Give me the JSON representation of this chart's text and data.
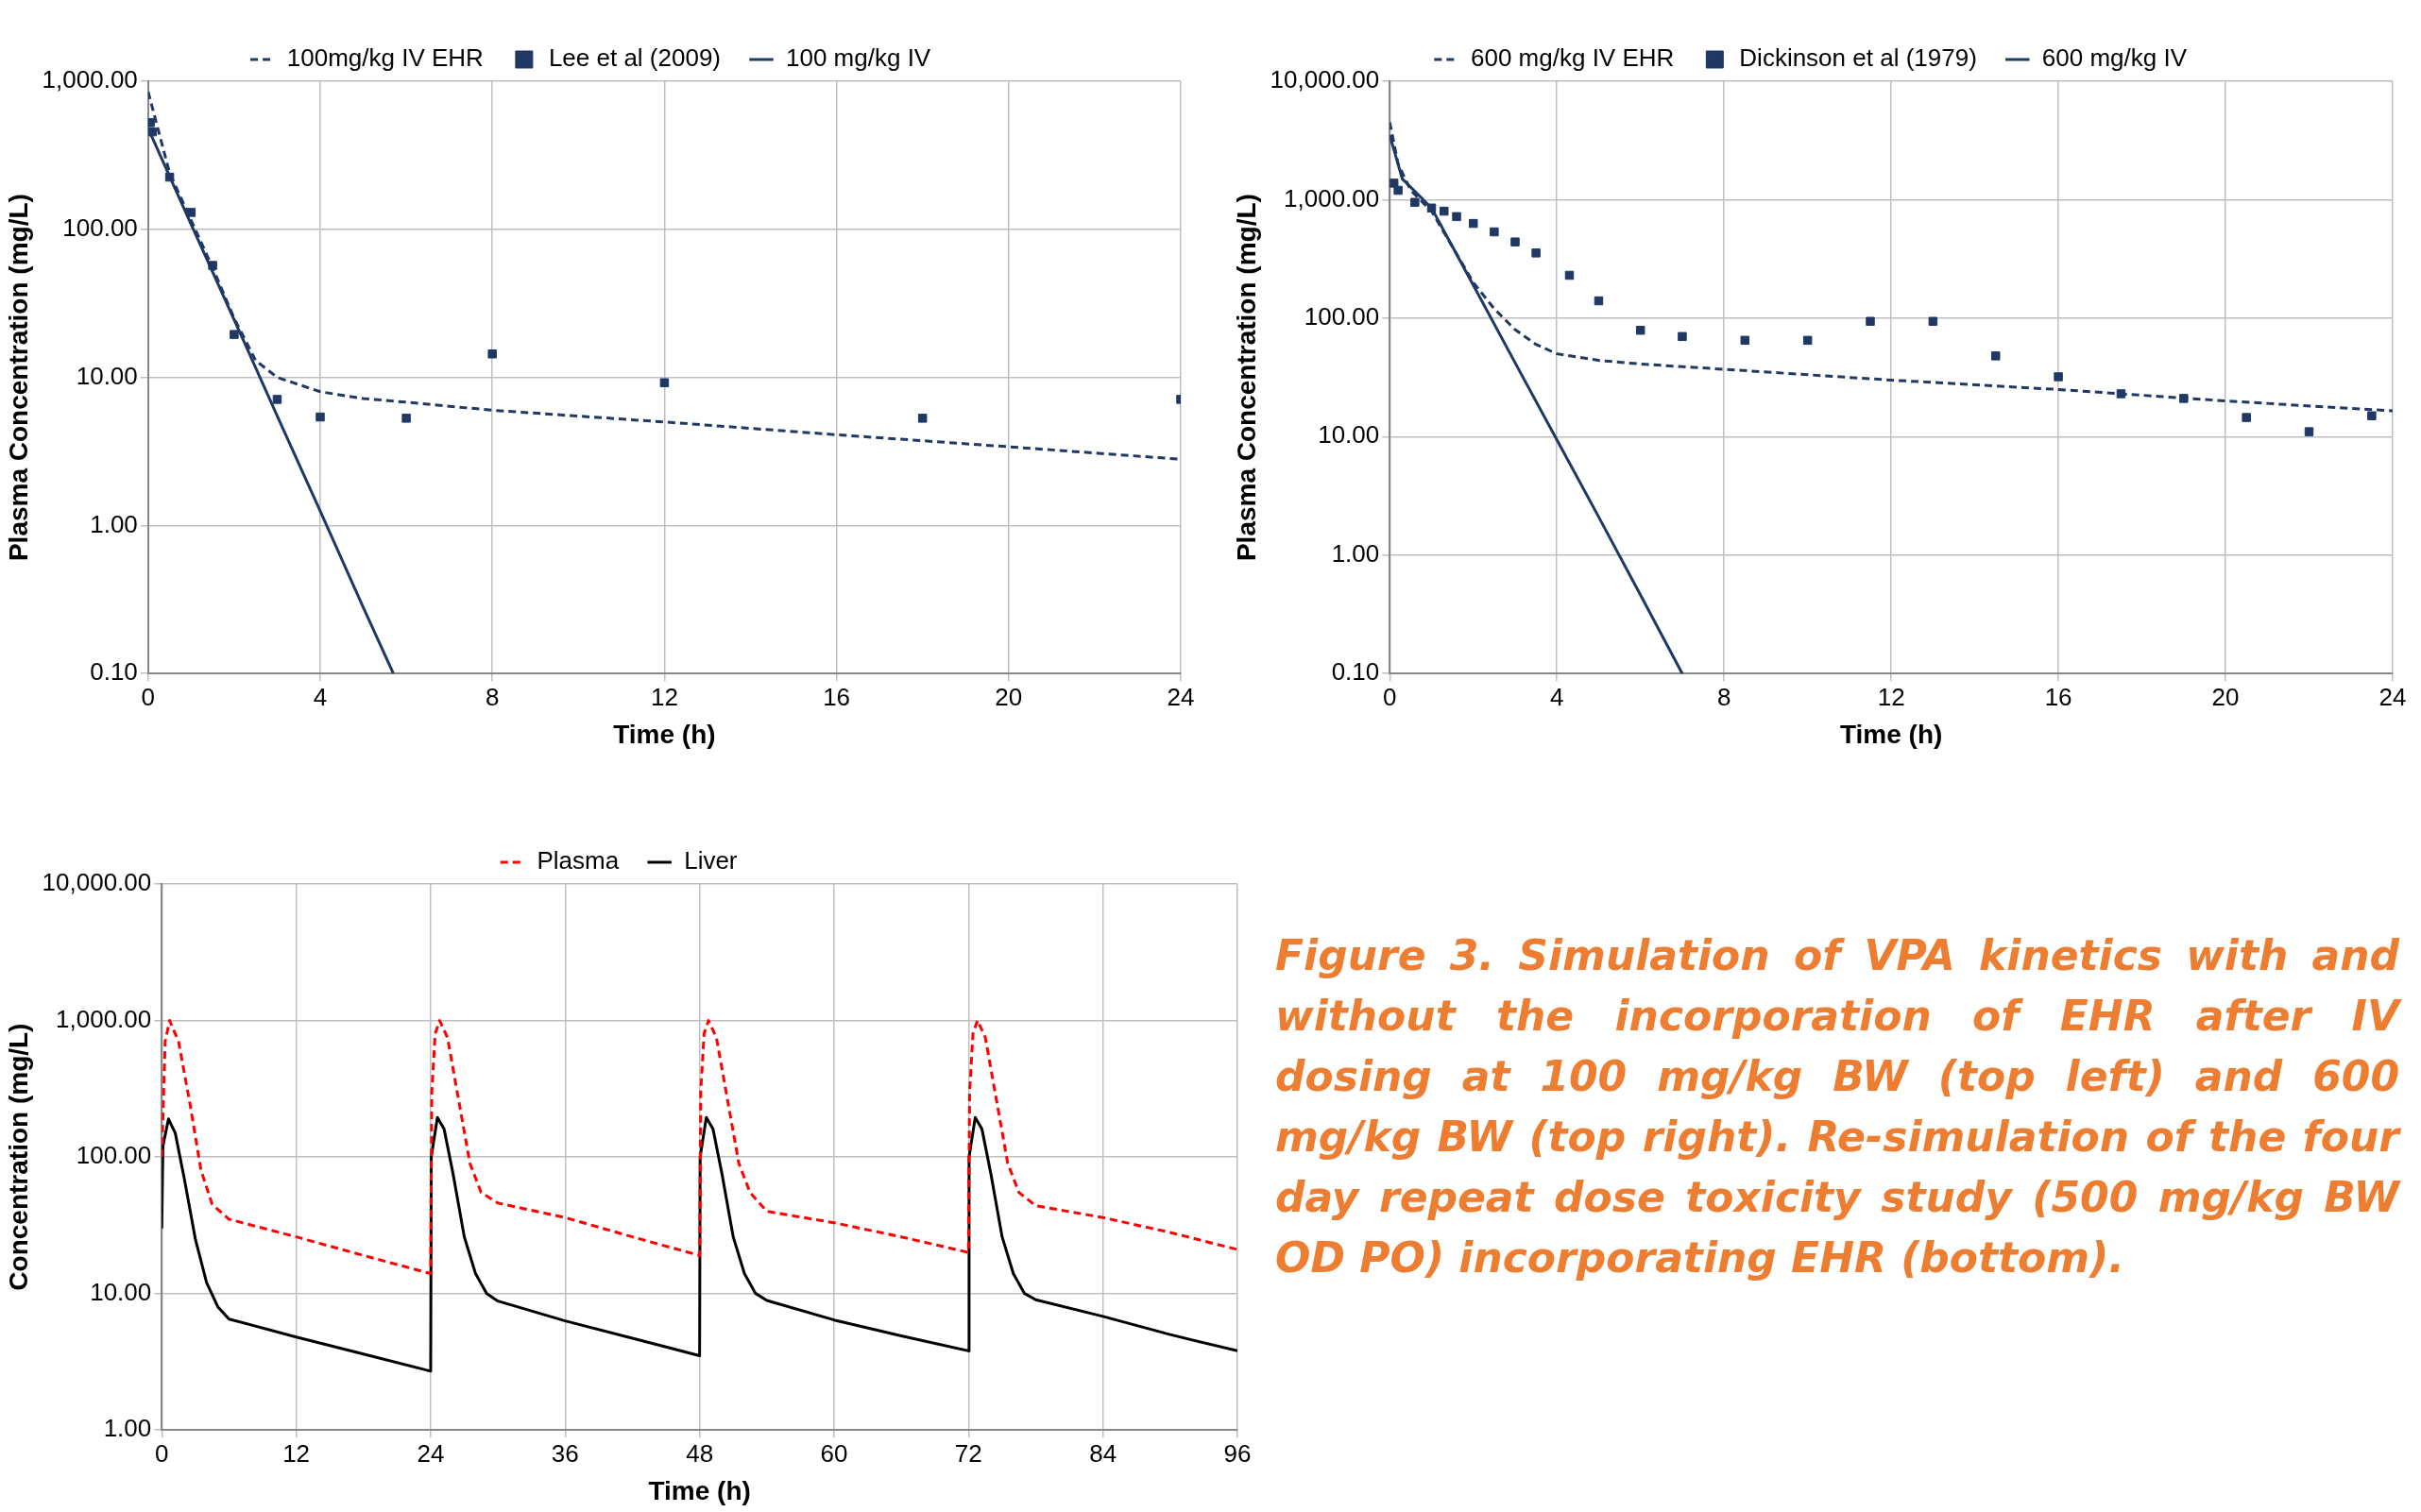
{
  "chart_data": [
    {
      "type": "line",
      "xlabel": "Time (h)",
      "ylabel": "Plasma Concentration (mg/L)",
      "log": "y",
      "grid": true,
      "legend": "top",
      "xlim": [
        0,
        24
      ],
      "xticks": [
        0,
        4,
        8,
        12,
        16,
        20,
        24
      ],
      "ylim": [
        0.1,
        1000
      ],
      "yticks": [
        {
          "value": 0.1,
          "label": "0.10"
        },
        {
          "value": 1,
          "label": "1.00"
        },
        {
          "value": 10,
          "label": "10.00"
        },
        {
          "value": 100,
          "label": "100.00"
        },
        {
          "value": 1000,
          "label": "1,000.00"
        }
      ],
      "series": [
        {
          "name": "100mg/kg IV EHR",
          "type": "line",
          "line_style": "dashed",
          "marker": "none",
          "color": "#1f3864",
          "x": [
            0,
            0.5,
            1,
            1.5,
            2,
            2.5,
            3,
            4,
            5,
            6,
            8,
            12,
            16,
            20,
            24
          ],
          "values": [
            850,
            240,
            115,
            55,
            25,
            13,
            10,
            8,
            7.2,
            6.8,
            6,
            5,
            4.1,
            3.4,
            2.8
          ]
        },
        {
          "name": "Lee et al (2009)",
          "type": "scatter",
          "marker": "square",
          "color": "#1f3864",
          "x": [
            0.05,
            0.1,
            0.5,
            1,
            1.5,
            2,
            3,
            4,
            6,
            8,
            12,
            18,
            24
          ],
          "values": [
            525,
            455,
            225,
            130,
            57,
            19.5,
            7.1,
            5.4,
            5.3,
            14.4,
            9.2,
            5.3,
            7.1
          ]
        },
        {
          "name": "100 mg/kg IV",
          "type": "line",
          "line_style": "solid",
          "marker": "none",
          "color": "#1f3864",
          "x": [
            0,
            1,
            2,
            3,
            4,
            5,
            5.7
          ],
          "values": [
            480,
            108,
            24.5,
            5.5,
            1.25,
            0.28,
            0.1
          ]
        }
      ]
    },
    {
      "type": "line",
      "xlabel": "Time (h)",
      "ylabel": "Plasma Concentration (mg/L)",
      "log": "y",
      "grid": true,
      "legend": "top",
      "xlim": [
        0,
        24
      ],
      "xticks": [
        0,
        4,
        8,
        12,
        16,
        20,
        24
      ],
      "ylim": [
        0.1,
        10000
      ],
      "yticks": [
        {
          "value": 0.1,
          "label": "0.10"
        },
        {
          "value": 1,
          "label": "1.00"
        },
        {
          "value": 10,
          "label": "10.00"
        },
        {
          "value": 100,
          "label": "100.00"
        },
        {
          "value": 1000,
          "label": "1,000.00"
        },
        {
          "value": 10000,
          "label": "10,000.00"
        }
      ],
      "series": [
        {
          "name": "600 mg/kg IV EHR",
          "type": "line",
          "line_style": "dashed",
          "marker": "none",
          "color": "#1f3864",
          "x": [
            0,
            0.2,
            0.5,
            1,
            1.5,
            2,
            2.5,
            3,
            3.5,
            4,
            5,
            6,
            8,
            12,
            16,
            20,
            24
          ],
          "values": [
            4500,
            2000,
            1200,
            800,
            400,
            200,
            120,
            80,
            60,
            50,
            44,
            41,
            37,
            30,
            25,
            20,
            16.5
          ]
        },
        {
          "name": "Dickinson et al (1979)",
          "type": "scatter",
          "marker": "square",
          "color": "#1f3864",
          "x": [
            0.1,
            0.2,
            0.6,
            1,
            1.3,
            1.6,
            2,
            2.5,
            3,
            3.5,
            4.3,
            5,
            6,
            7,
            8.5,
            10,
            11.5,
            13,
            14.5,
            16,
            17.5,
            19,
            20.5,
            22,
            23.5
          ],
          "values": [
            1380,
            1200,
            950,
            850,
            800,
            720,
            630,
            535,
            440,
            355,
            230,
            140,
            79,
            70,
            65,
            65,
            94,
            94,
            48,
            32,
            23,
            21,
            14.5,
            11,
            15
          ]
        },
        {
          "name": "600 mg/kg IV",
          "type": "line",
          "line_style": "solid",
          "marker": "none",
          "color": "#1f3864",
          "x": [
            0,
            0.3,
            1,
            2,
            3,
            4,
            5,
            6,
            7
          ],
          "values": [
            3500,
            1500,
            850,
            190,
            42,
            9.4,
            2.1,
            0.46,
            0.1
          ]
        }
      ]
    },
    {
      "type": "line",
      "xlabel": "Time (h)",
      "ylabel": "Concentration (mg/L)",
      "log": "y",
      "grid": true,
      "legend": "top",
      "xlim": [
        0,
        96
      ],
      "xticks": [
        0,
        12,
        24,
        36,
        48,
        60,
        72,
        84,
        96
      ],
      "ylim": [
        1,
        10000
      ],
      "yticks": [
        {
          "value": 1,
          "label": "1.00"
        },
        {
          "value": 10,
          "label": "10.00"
        },
        {
          "value": 100,
          "label": "100.00"
        },
        {
          "value": 1000,
          "label": "1,000.00"
        },
        {
          "value": 10000,
          "label": "10,000.00"
        }
      ],
      "series": [
        {
          "name": "Plasma",
          "type": "line",
          "line_style": "dashed",
          "marker": "none",
          "color": "#ff0000",
          "x": [
            0,
            0.3,
            0.7,
            1.5,
            2.5,
            3.5,
            4.5,
            6,
            12,
            18,
            24,
            24.1,
            24.4,
            24.8,
            25.5,
            26.5,
            27.5,
            28.5,
            30,
            36,
            42,
            48,
            48.1,
            48.4,
            48.8,
            49.5,
            50.5,
            51.5,
            52.5,
            54,
            60,
            66,
            72,
            72.1,
            72.4,
            72.8,
            73.5,
            74.5,
            75.5,
            76.5,
            78,
            84,
            90,
            96
          ],
          "values": [
            100,
            700,
            1000,
            700,
            250,
            80,
            45,
            35,
            26,
            19,
            14,
            300,
            800,
            1000,
            750,
            260,
            90,
            55,
            46,
            36,
            26,
            19,
            300,
            800,
            1000,
            750,
            260,
            90,
            55,
            40,
            33,
            26,
            20,
            300,
            800,
            1000,
            750,
            260,
            90,
            55,
            44,
            36,
            28,
            21
          ]
        },
        {
          "name": "Liver",
          "type": "line",
          "line_style": "solid",
          "marker": "none",
          "color": "#000000",
          "x": [
            0,
            0.1,
            0.6,
            1.2,
            2,
            3,
            4,
            5,
            6,
            12,
            18,
            24,
            24.05,
            24.6,
            25.2,
            26,
            27,
            28,
            29,
            30,
            36,
            42,
            48,
            48.05,
            48.6,
            49.2,
            50,
            51,
            52,
            53,
            54,
            60,
            66,
            72,
            72.05,
            72.6,
            73.2,
            74,
            75,
            76,
            77,
            78,
            84,
            90,
            96
          ],
          "values": [
            30,
            120,
            190,
            150,
            70,
            25,
            12,
            8,
            6.5,
            4.8,
            3.6,
            2.7,
            100,
            195,
            160,
            75,
            26,
            14,
            10,
            8.8,
            6.3,
            4.7,
            3.5,
            100,
            195,
            160,
            75,
            26,
            14,
            10,
            8.9,
            6.4,
            4.9,
            3.8,
            100,
            195,
            160,
            75,
            26,
            14,
            10,
            9,
            6.8,
            5,
            3.8
          ]
        }
      ]
    },
    {
      "type": "other",
      "annotations": [
        "Figure 3. Simulation of VPA kinetics with and without the incorporation of EHR after IV dosing at 100 mg/kg BW (top left) and 600 mg/kg BW (top right). Re-simulation of the four day repeat dose toxicity study (500 mg/kg BW OD PO) incorporating EHR (bottom)."
      ]
    }
  ]
}
